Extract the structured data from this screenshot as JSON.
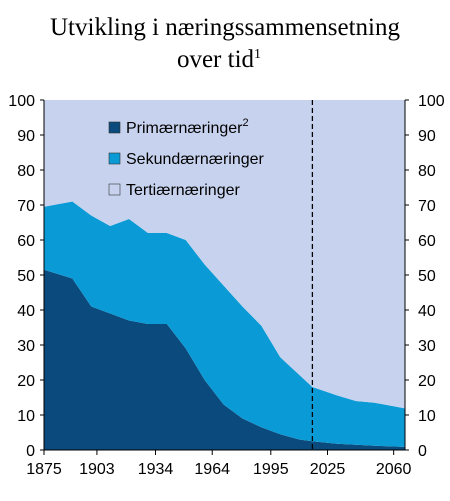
{
  "chart_data": {
    "type": "area",
    "stacked": true,
    "title_line1": "Utvikling i næringssammensetning",
    "title_line2": "over tid",
    "title_footnote": "1",
    "x_ticks": [
      "1875",
      "1903",
      "1934",
      "1964",
      "1995",
      "2025",
      "2060"
    ],
    "y_ticks": [
      "0",
      "10",
      "20",
      "30",
      "40",
      "50",
      "60",
      "70",
      "80",
      "90",
      "100"
    ],
    "xlim": [
      1875,
      2066
    ],
    "ylim": [
      0,
      100
    ],
    "projection_line_x": 2017,
    "x": [
      1875,
      1890,
      1900,
      1910,
      1920,
      1930,
      1940,
      1950,
      1960,
      1970,
      1980,
      1990,
      2000,
      2010,
      2017,
      2030,
      2040,
      2050,
      2066
    ],
    "series": [
      {
        "name": "Primærnæringer",
        "footnote": "2",
        "color": "#0a4a7c",
        "values": [
          51.5,
          49,
          41,
          39,
          37,
          36,
          36,
          29,
          20,
          13,
          9,
          6.5,
          4.5,
          3,
          2.5,
          1.8,
          1.5,
          1.2,
          0.9
        ]
      },
      {
        "name": "Sekundærnæringer",
        "color": "#0a9bd6",
        "values": [
          18,
          22,
          26,
          25,
          29,
          26,
          26,
          31,
          33,
          34,
          32,
          29,
          22,
          18.5,
          15.5,
          13.8,
          12.5,
          12.3,
          11
        ]
      },
      {
        "name": "Tertiærnæringer",
        "color": "#c7d3ee",
        "values": [
          30.5,
          29,
          33,
          36,
          34,
          38,
          38,
          40,
          47,
          53,
          59,
          64.5,
          73.5,
          78.5,
          82,
          84.4,
          86,
          86.5,
          88.1
        ]
      }
    ]
  }
}
